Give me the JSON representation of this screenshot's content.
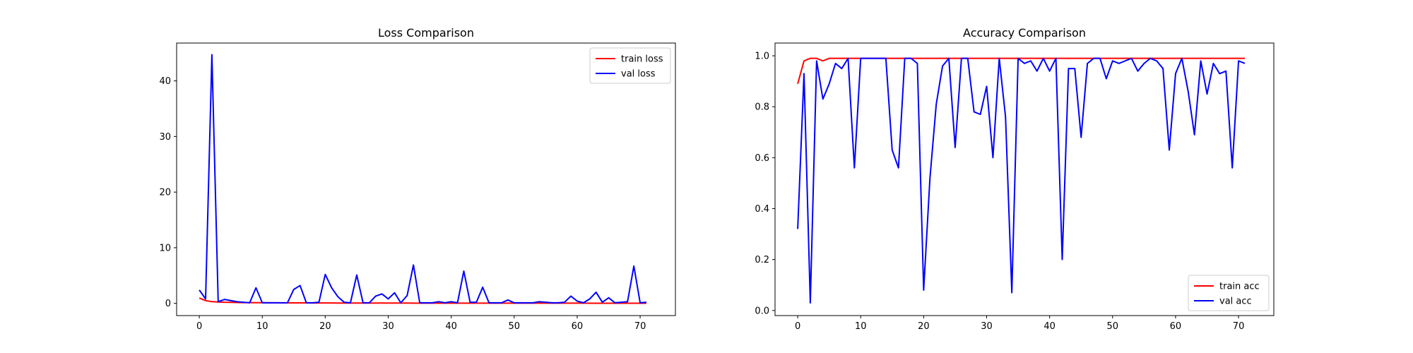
{
  "chart_data": [
    {
      "type": "line",
      "title": "Loss Comparison",
      "xlabel": "",
      "ylabel": "",
      "xlim": [
        -3.6,
        75.6
      ],
      "ylim": [
        -2.2,
        46.8
      ],
      "xticks": [
        0,
        10,
        20,
        30,
        40,
        50,
        60,
        70
      ],
      "yticks": [
        0,
        10,
        20,
        30,
        40
      ],
      "grid": false,
      "legend_position": "top-right",
      "series": [
        {
          "name": "train loss",
          "color": "#ff0000",
          "x": [
            0,
            1,
            2,
            3,
            4,
            5,
            6,
            7,
            8,
            9,
            10,
            11,
            12,
            13,
            14,
            15,
            16,
            17,
            18,
            19,
            20,
            21,
            22,
            23,
            24,
            25,
            26,
            27,
            28,
            29,
            30,
            31,
            32,
            33,
            34,
            35,
            36,
            37,
            38,
            39,
            40,
            41,
            42,
            43,
            44,
            45,
            46,
            47,
            48,
            49,
            50,
            51,
            52,
            53,
            54,
            55,
            56,
            57,
            58,
            59,
            60,
            61,
            62,
            63,
            64,
            65,
            66,
            67,
            68,
            69,
            70,
            71
          ],
          "values": [
            0.95,
            0.5,
            0.3,
            0.25,
            0.2,
            0.18,
            0.15,
            0.14,
            0.13,
            0.12,
            0.11,
            0.1,
            0.1,
            0.09,
            0.09,
            0.08,
            0.08,
            0.08,
            0.07,
            0.07,
            0.07,
            0.07,
            0.06,
            0.06,
            0.06,
            0.06,
            0.06,
            0.05,
            0.05,
            0.05,
            0.05,
            0.05,
            0.05,
            0.05,
            0.04,
            0.04,
            0.04,
            0.04,
            0.04,
            0.04,
            0.04,
            0.04,
            0.04,
            0.04,
            0.03,
            0.03,
            0.03,
            0.03,
            0.03,
            0.03,
            0.03,
            0.03,
            0.03,
            0.03,
            0.03,
            0.03,
            0.03,
            0.03,
            0.03,
            0.03,
            0.03,
            0.03,
            0.02,
            0.02,
            0.02,
            0.02,
            0.02,
            0.02,
            0.02,
            0.02,
            0.02,
            0.02
          ]
        },
        {
          "name": "val loss",
          "color": "#0000ff",
          "x": [
            0,
            1,
            2,
            3,
            4,
            5,
            6,
            7,
            8,
            9,
            10,
            11,
            12,
            13,
            14,
            15,
            16,
            17,
            18,
            19,
            20,
            21,
            22,
            23,
            24,
            25,
            26,
            27,
            28,
            29,
            30,
            31,
            32,
            33,
            34,
            35,
            36,
            37,
            38,
            39,
            40,
            41,
            42,
            43,
            44,
            45,
            46,
            47,
            48,
            49,
            50,
            51,
            52,
            53,
            54,
            55,
            56,
            57,
            58,
            59,
            60,
            61,
            62,
            63,
            64,
            65,
            66,
            67,
            68,
            69,
            70,
            71
          ],
          "values": [
            2.4,
            0.8,
            44.7,
            0.3,
            0.7,
            0.5,
            0.3,
            0.2,
            0.1,
            2.8,
            0.1,
            0.1,
            0.1,
            0.1,
            0.1,
            2.5,
            3.2,
            0.1,
            0.1,
            0.2,
            5.2,
            2.8,
            1.2,
            0.2,
            0.1,
            5.1,
            0.1,
            0.1,
            1.3,
            1.7,
            0.8,
            1.9,
            0.1,
            1.4,
            6.9,
            0.1,
            0.1,
            0.1,
            0.3,
            0.1,
            0.3,
            0.1,
            5.8,
            0.2,
            0.2,
            2.9,
            0.1,
            0.1,
            0.1,
            0.6,
            0.1,
            0.1,
            0.1,
            0.1,
            0.3,
            0.2,
            0.1,
            0.1,
            0.2,
            1.3,
            0.4,
            0.1,
            0.8,
            2.0,
            0.2,
            1.0,
            0.1,
            0.2,
            0.3,
            6.7,
            0.1,
            0.2
          ]
        }
      ]
    },
    {
      "type": "line",
      "title": "Accuracy Comparison",
      "xlabel": "",
      "ylabel": "",
      "xlim": [
        -3.6,
        75.6
      ],
      "ylim": [
        -0.02,
        1.05
      ],
      "xticks": [
        0,
        10,
        20,
        30,
        40,
        50,
        60,
        70
      ],
      "yticks": [
        0.0,
        0.2,
        0.4,
        0.6,
        0.8,
        1.0
      ],
      "ytick_labels": [
        "0.0",
        "0.2",
        "0.4",
        "0.6",
        "0.8",
        "1.0"
      ],
      "grid": false,
      "legend_position": "bottom-right",
      "series": [
        {
          "name": "train acc",
          "color": "#ff0000",
          "x": [
            0,
            1,
            2,
            3,
            4,
            5,
            6,
            7,
            8,
            9,
            10,
            11,
            12,
            13,
            14,
            15,
            16,
            17,
            18,
            19,
            20,
            21,
            22,
            23,
            24,
            25,
            26,
            27,
            28,
            29,
            30,
            31,
            32,
            33,
            34,
            35,
            36,
            37,
            38,
            39,
            40,
            41,
            42,
            43,
            44,
            45,
            46,
            47,
            48,
            49,
            50,
            51,
            52,
            53,
            54,
            55,
            56,
            57,
            58,
            59,
            60,
            61,
            62,
            63,
            64,
            65,
            66,
            67,
            68,
            69,
            70,
            71
          ],
          "values": [
            0.89,
            0.98,
            0.99,
            0.99,
            0.98,
            0.99,
            0.99,
            0.99,
            0.99,
            0.99,
            0.99,
            0.99,
            0.99,
            0.99,
            0.99,
            0.99,
            0.99,
            0.99,
            0.99,
            0.99,
            0.99,
            0.99,
            0.99,
            0.99,
            0.99,
            0.99,
            0.99,
            0.99,
            0.99,
            0.99,
            0.99,
            0.99,
            0.99,
            0.99,
            0.99,
            0.99,
            0.99,
            0.99,
            0.99,
            0.99,
            0.99,
            0.99,
            0.99,
            0.99,
            0.99,
            0.99,
            0.99,
            0.99,
            0.99,
            0.99,
            0.99,
            0.99,
            0.99,
            0.99,
            0.99,
            0.99,
            0.99,
            0.99,
            0.99,
            0.99,
            0.99,
            0.99,
            0.99,
            0.99,
            0.99,
            0.99,
            0.99,
            0.99,
            0.99,
            0.99,
            0.99,
            0.99
          ]
        },
        {
          "name": "val acc",
          "color": "#0000ff",
          "x": [
            0,
            1,
            2,
            3,
            4,
            5,
            6,
            7,
            8,
            9,
            10,
            11,
            12,
            13,
            14,
            15,
            16,
            17,
            18,
            19,
            20,
            21,
            22,
            23,
            24,
            25,
            26,
            27,
            28,
            29,
            30,
            31,
            32,
            33,
            34,
            35,
            36,
            37,
            38,
            39,
            40,
            41,
            42,
            43,
            44,
            45,
            46,
            47,
            48,
            49,
            50,
            51,
            52,
            53,
            54,
            55,
            56,
            57,
            58,
            59,
            60,
            61,
            62,
            63,
            64,
            65,
            66,
            67,
            68,
            69,
            70,
            71
          ],
          "values": [
            0.32,
            0.93,
            0.03,
            0.98,
            0.83,
            0.89,
            0.97,
            0.95,
            0.99,
            0.56,
            0.99,
            0.99,
            0.99,
            0.99,
            0.99,
            0.63,
            0.56,
            0.99,
            0.99,
            0.97,
            0.08,
            0.52,
            0.81,
            0.96,
            0.99,
            0.64,
            0.99,
            0.99,
            0.78,
            0.77,
            0.88,
            0.6,
            0.99,
            0.76,
            0.07,
            0.99,
            0.97,
            0.98,
            0.94,
            0.99,
            0.94,
            0.99,
            0.2,
            0.95,
            0.95,
            0.68,
            0.97,
            0.99,
            0.99,
            0.91,
            0.98,
            0.97,
            0.98,
            0.99,
            0.94,
            0.97,
            0.99,
            0.98,
            0.95,
            0.63,
            0.93,
            0.99,
            0.86,
            0.69,
            0.98,
            0.85,
            0.97,
            0.93,
            0.94,
            0.56,
            0.98,
            0.97
          ]
        }
      ]
    }
  ]
}
